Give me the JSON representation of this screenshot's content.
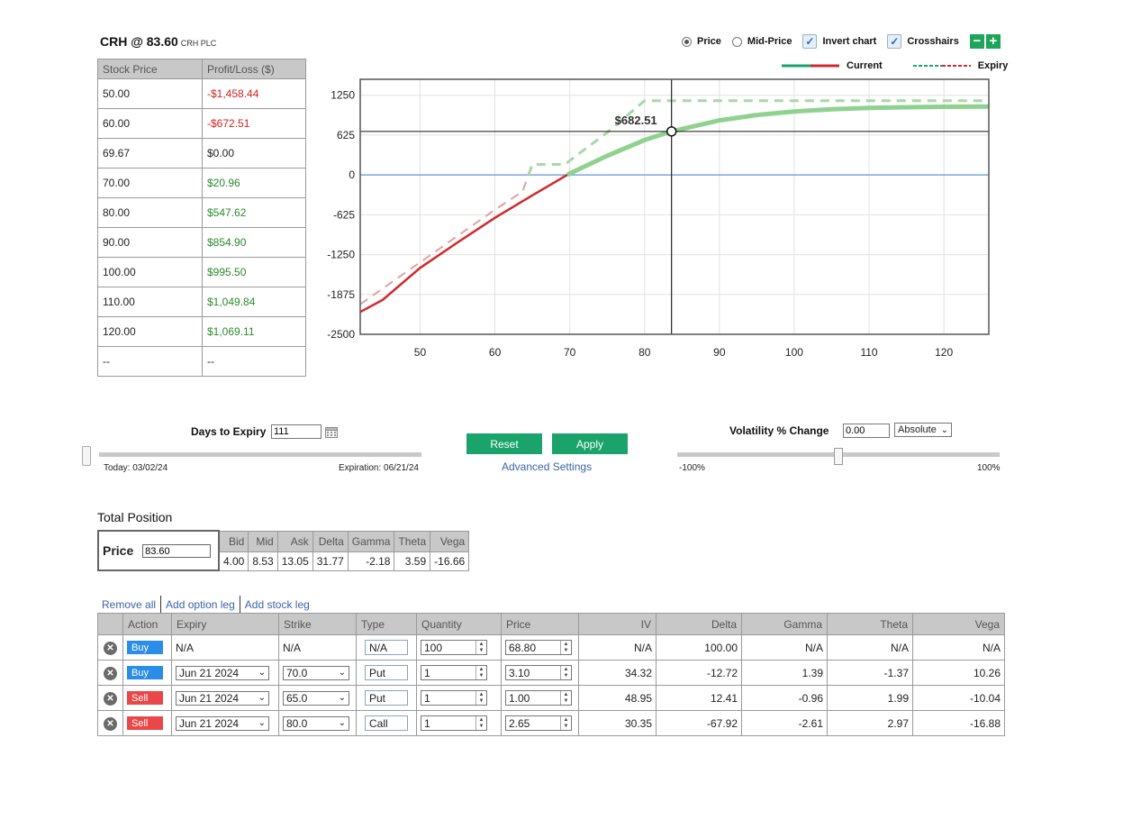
{
  "header": {
    "title": "CRH @ 83.60",
    "subtitle": "CRH PLC"
  },
  "pl_table": {
    "headers": [
      "Stock Price",
      "Profit/Loss ($)"
    ],
    "rows": [
      {
        "price": "50.00",
        "pl": "-$1,458.44",
        "sign": "neg"
      },
      {
        "price": "60.00",
        "pl": "-$672.51",
        "sign": "neg"
      },
      {
        "price": "69.67",
        "pl": "$0.00",
        "sign": "zero"
      },
      {
        "price": "70.00",
        "pl": "$20.96",
        "sign": "pos"
      },
      {
        "price": "80.00",
        "pl": "$547.62",
        "sign": "pos"
      },
      {
        "price": "90.00",
        "pl": "$854.90",
        "sign": "pos"
      },
      {
        "price": "100.00",
        "pl": "$995.50",
        "sign": "pos"
      },
      {
        "price": "110.00",
        "pl": "$1,049.84",
        "sign": "pos"
      },
      {
        "price": "120.00",
        "pl": "$1,069.11",
        "sign": "pos"
      },
      {
        "price": "--",
        "pl": "--",
        "sign": "zero"
      }
    ]
  },
  "chart_options": {
    "price_label": "Price",
    "mid_price_label": "Mid-Price",
    "invert_label": "Invert chart",
    "crosshairs_label": "Crosshairs",
    "minus_label": "−",
    "plus_label": "+",
    "selected": "Price",
    "invert_checked": true,
    "crosshairs_checked": true
  },
  "legend": {
    "current": "Current",
    "expiry": "Expiry"
  },
  "chart_data": {
    "type": "line",
    "xlim": [
      42,
      126
    ],
    "ylim": [
      -2500,
      1500
    ],
    "x_ticks": [
      50,
      60,
      70,
      80,
      90,
      100,
      110,
      120
    ],
    "y_ticks": [
      1250,
      625,
      0,
      -625,
      -1250,
      -1875,
      -2500
    ],
    "grid": true,
    "crosshair": {
      "x": 83.6,
      "y": 682.51,
      "label": "$682.51"
    },
    "series": [
      {
        "key": "current",
        "color_neg": "#d0282c",
        "color_pos": "#8fd18f",
        "x": [
          42,
          45,
          50,
          55,
          60,
          65,
          69.67,
          70,
          75,
          80,
          83.6,
          85,
          90,
          95,
          100,
          105,
          110,
          115,
          120,
          126
        ],
        "y": [
          -2150,
          -1960,
          -1458.44,
          -1060,
          -672.51,
          -320,
          0,
          20.96,
          300,
          547.62,
          682.51,
          720,
          854.9,
          940,
          995.5,
          1030,
          1049.84,
          1062,
          1069.11,
          1072
        ]
      },
      {
        "key": "expiry",
        "color_neg": "#e0a0a0",
        "color_pos": "#a8d8a8",
        "x": [
          42,
          50,
          60,
          63.7,
          65,
          69.4,
          70,
          75,
          80,
          126
        ],
        "y": [
          -2030,
          -1370,
          -545,
          -260,
          165,
          165,
          225,
          665,
          1165,
          1165
        ]
      }
    ]
  },
  "days": {
    "label": "Days to Expiry",
    "value": "111",
    "today": "Today: 03/02/24",
    "expiration": "Expiration: 06/21/24"
  },
  "buttons": {
    "reset": "Reset",
    "apply": "Apply",
    "advanced": "Advanced Settings"
  },
  "volatility": {
    "label": "Volatility % Change",
    "value": "0.00",
    "mode": "Absolute",
    "min": "-100%",
    "max": "100%",
    "level_percent": 0
  },
  "total_position": {
    "title": "Total Position",
    "price_label": "Price",
    "price_value": "83.60",
    "headers": [
      "Bid",
      "Mid",
      "Ask",
      "Delta",
      "Gamma",
      "Theta",
      "Vega"
    ],
    "values": [
      "4.00",
      "8.53",
      "13.05",
      "31.77",
      "-2.18",
      "3.59",
      "-16.66"
    ]
  },
  "leg_links": {
    "remove_all": "Remove all",
    "add_option": "Add option leg",
    "add_stock": "Add stock leg"
  },
  "legs": {
    "headers": [
      "Action",
      "Expiry",
      "Strike",
      "Type",
      "Quantity",
      "Price",
      "IV",
      "Delta",
      "Gamma",
      "Theta",
      "Vega"
    ],
    "rows": [
      {
        "action": "Buy",
        "kind": "buy",
        "expiry": "N/A",
        "strike": "N/A",
        "type": "N/A",
        "quantity": "100",
        "price": "68.80",
        "iv": "N/A",
        "delta": "100.00",
        "gamma": "N/A",
        "theta": "N/A",
        "vega": "N/A",
        "stock": true
      },
      {
        "action": "Buy",
        "kind": "buy",
        "expiry": "Jun 21 2024",
        "strike": "70.0",
        "type": "Put",
        "quantity": "1",
        "price": "3.10",
        "iv": "34.32",
        "delta": "-12.72",
        "gamma": "1.39",
        "theta": "-1.37",
        "vega": "10.26",
        "stock": false
      },
      {
        "action": "Sell",
        "kind": "sell",
        "expiry": "Jun 21 2024",
        "strike": "65.0",
        "type": "Put",
        "quantity": "1",
        "price": "1.00",
        "iv": "48.95",
        "delta": "12.41",
        "gamma": "-0.96",
        "theta": "1.99",
        "vega": "-10.04",
        "stock": false
      },
      {
        "action": "Sell",
        "kind": "sell",
        "expiry": "Jun 21 2024",
        "strike": "80.0",
        "type": "Call",
        "quantity": "1",
        "price": "2.65",
        "iv": "30.35",
        "delta": "-67.92",
        "gamma": "-2.61",
        "theta": "2.97",
        "vega": "-16.88",
        "stock": false
      }
    ]
  }
}
